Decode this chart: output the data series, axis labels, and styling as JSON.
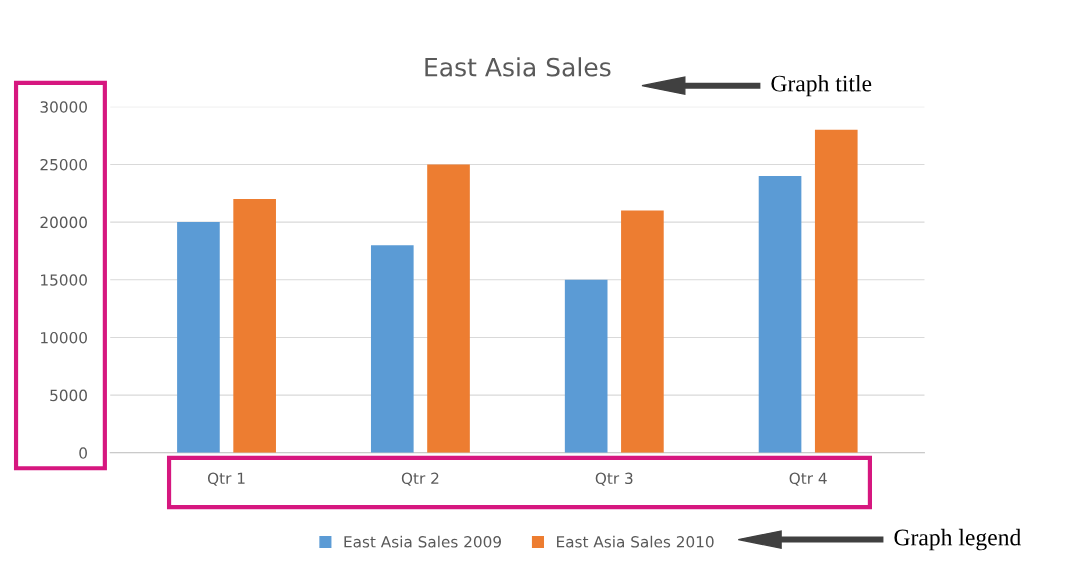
{
  "chart_data": {
    "type": "bar",
    "title": "East Asia Sales",
    "categories": [
      "Qtr 1",
      "Qtr 2",
      "Qtr 3",
      "Qtr 4"
    ],
    "series": [
      {
        "name": "East Asia Sales 2009",
        "color": "#5b9bd5",
        "values": [
          20000,
          18000,
          15000,
          24000
        ]
      },
      {
        "name": "East Asia Sales 2010",
        "color": "#ed7d31",
        "values": [
          22000,
          25000,
          21000,
          28000
        ]
      }
    ],
    "ylim": [
      0,
      30000
    ],
    "yticks": [
      0,
      5000,
      10000,
      15000,
      20000,
      25000,
      30000
    ],
    "grid": "y",
    "legend": "bottom",
    "annotations": [
      "Graph title",
      "Graph legend"
    ]
  }
}
